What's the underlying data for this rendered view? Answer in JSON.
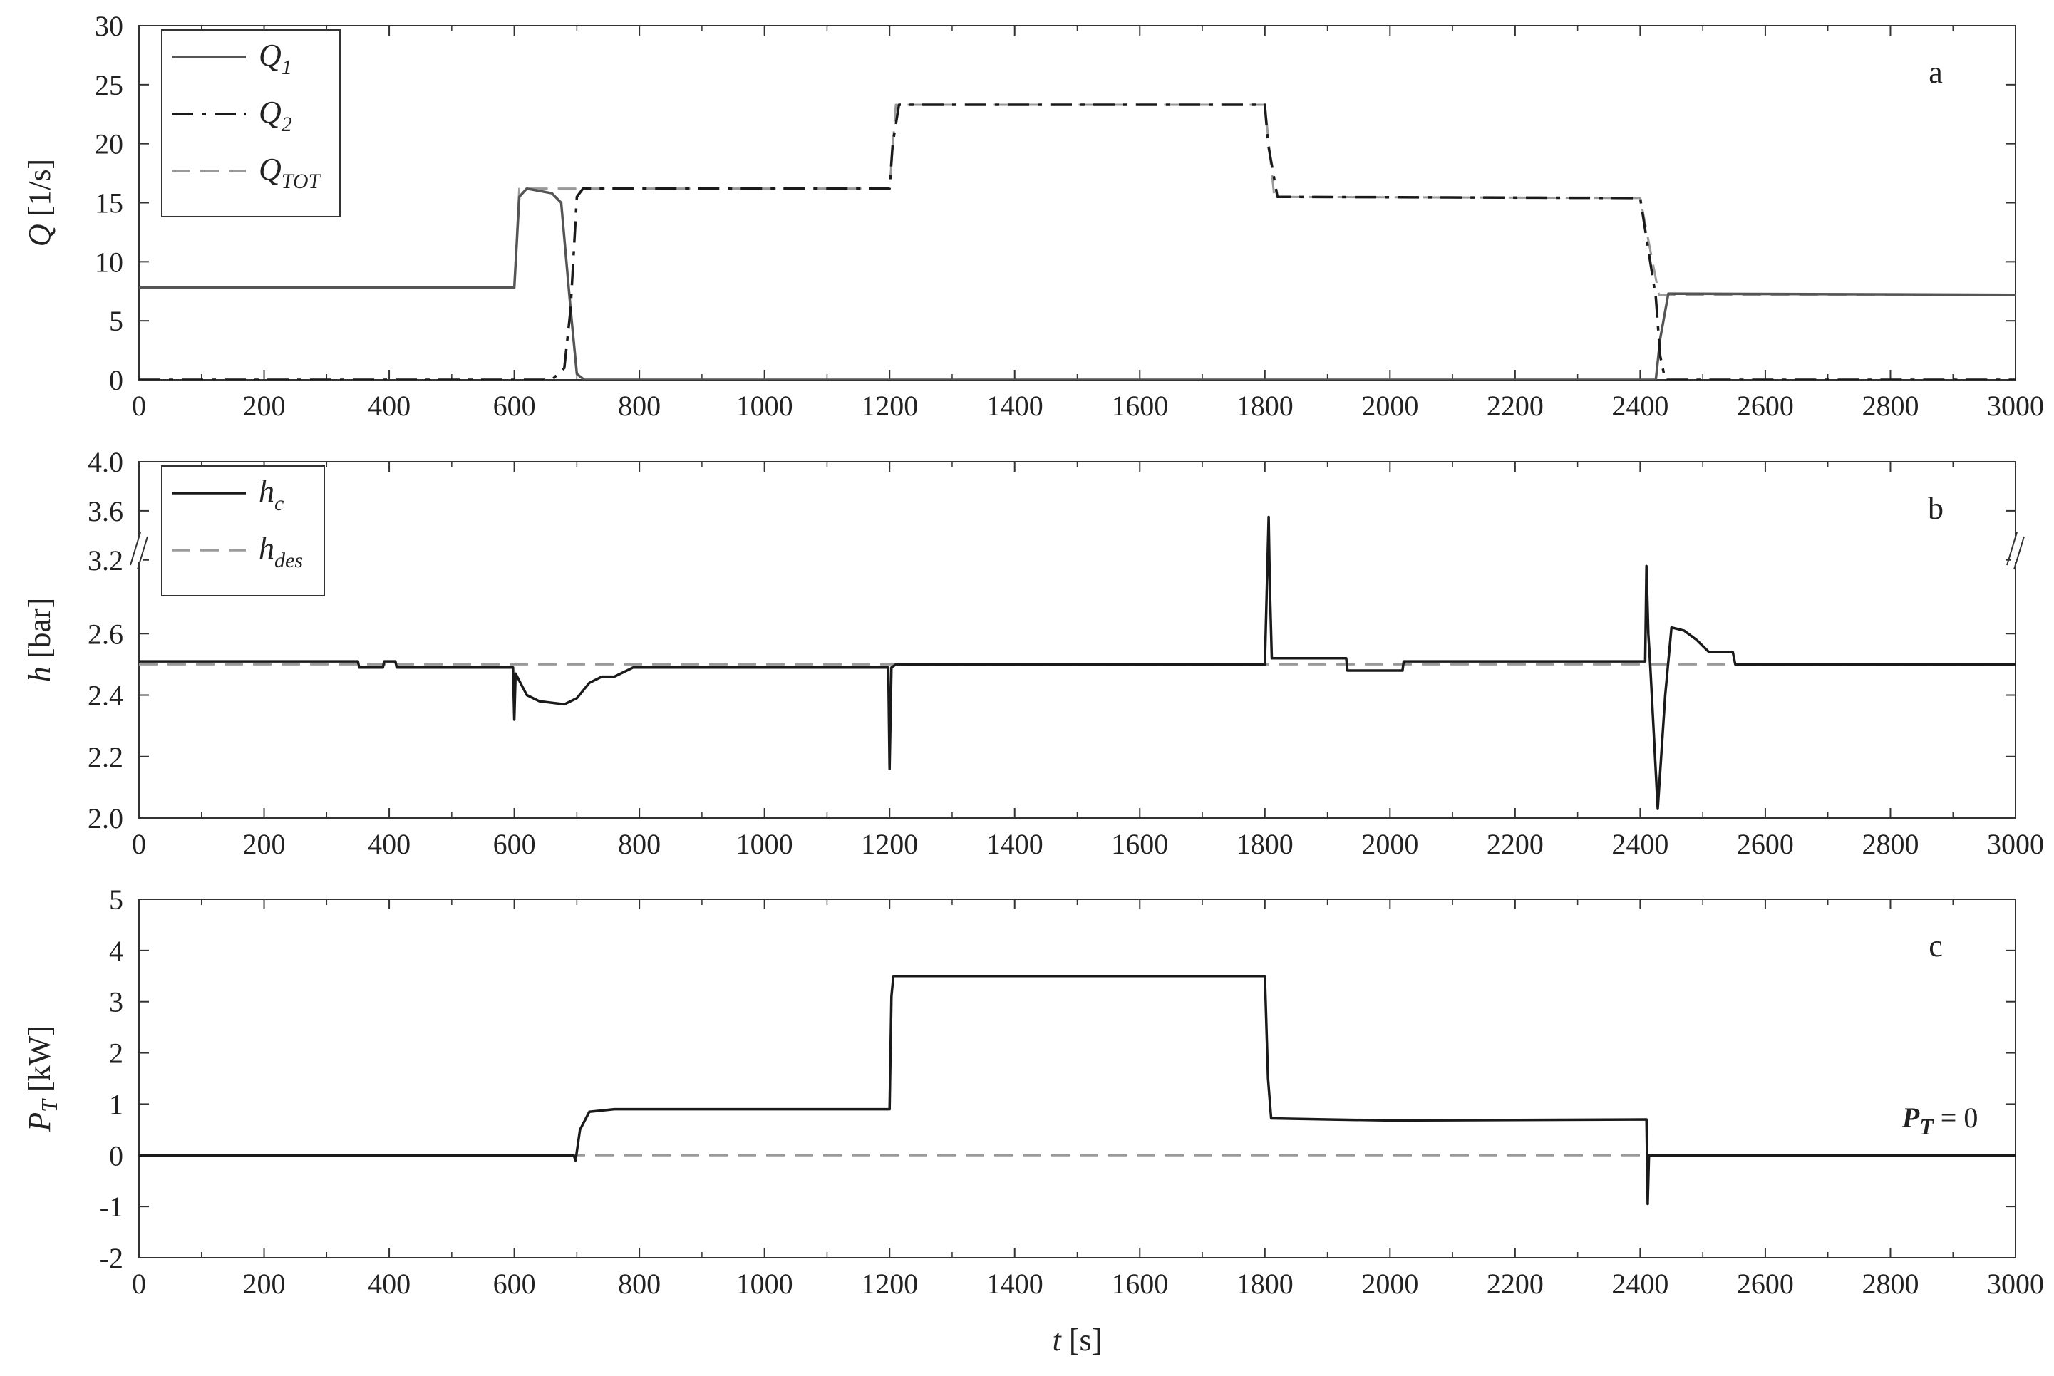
{
  "chart_data": [
    {
      "id": "a",
      "type": "line",
      "panel_label": "a",
      "ylabel": {
        "symbol": "Q",
        "unit": "[1/s]"
      },
      "xlim": [
        0,
        3000
      ],
      "ylim": [
        0,
        30
      ],
      "xticks": [
        0,
        200,
        400,
        600,
        800,
        1000,
        1200,
        1400,
        1600,
        1800,
        2000,
        2200,
        2400,
        2600,
        2800,
        3000
      ],
      "xtick_labels": [
        "0",
        "200",
        "400",
        "600",
        "800",
        "1000",
        "1200",
        "1400",
        "1600",
        "1800",
        "2000",
        "2200",
        "2400",
        "2600",
        "2800",
        "3000"
      ],
      "yticks": [
        0,
        5,
        10,
        15,
        20,
        25,
        30
      ],
      "ytick_labels": [
        "0",
        "5",
        "10",
        "15",
        "20",
        "25",
        "30"
      ],
      "legend_position": "top-left",
      "series": [
        {
          "name": "Q1",
          "legend_main": "Q",
          "legend_sub": "1",
          "style": "solid",
          "color": "#555555",
          "x": [
            0,
            600,
            608,
            620,
            660,
            675,
            690,
            700,
            712,
            2410,
            2425,
            2432,
            2445,
            3000
          ],
          "y": [
            7.8,
            7.8,
            15.5,
            16.2,
            15.8,
            15.0,
            6.0,
            0.5,
            0,
            0,
            0,
            3.5,
            7.3,
            7.2
          ]
        },
        {
          "name": "Q2",
          "legend_main": "Q",
          "legend_sub": "2",
          "style": "dashdot",
          "color": "#1a1a1a",
          "x": [
            0,
            660,
            680,
            690,
            700,
            710,
            1200,
            1205,
            1215,
            1800,
            1805,
            1820,
            2400,
            2410,
            2425,
            2432,
            2440,
            3000
          ],
          "y": [
            0,
            0,
            1.0,
            6.0,
            15.5,
            16.2,
            16.2,
            20.0,
            23.3,
            23.3,
            20.0,
            15.5,
            15.4,
            12.0,
            7.0,
            2.0,
            0,
            0
          ]
        },
        {
          "name": "QTOT",
          "legend_main": "Q",
          "legend_sub": "TOT",
          "style": "dashed",
          "color": "#9a9a9a",
          "x": [
            0,
            600,
            608,
            1200,
            1210,
            1800,
            1815,
            2400,
            2430,
            3000
          ],
          "y": [
            7.8,
            7.8,
            16.2,
            16.2,
            23.3,
            23.3,
            15.5,
            15.4,
            7.2,
            7.2
          ]
        }
      ]
    },
    {
      "id": "b",
      "type": "line",
      "panel_label": "b",
      "ylabel": {
        "symbol": "h",
        "unit": "[bar]"
      },
      "xlim": [
        0,
        3000
      ],
      "ylim": [
        2.0,
        4.0
      ],
      "axis_break": [
        2.8,
        3.1
      ],
      "xticks": [
        0,
        200,
        400,
        600,
        800,
        1000,
        1200,
        1400,
        1600,
        1800,
        2000,
        2200,
        2400,
        2600,
        2800,
        3000
      ],
      "xtick_labels": [
        "0",
        "200",
        "400",
        "600",
        "800",
        "1000",
        "1200",
        "1400",
        "1600",
        "1800",
        "2000",
        "2200",
        "2400",
        "2600",
        "2800",
        "3000"
      ],
      "yticks": [
        2.0,
        2.2,
        2.4,
        2.6,
        3.2,
        3.6,
        4.0
      ],
      "ytick_labels": [
        "2.0",
        "2.2",
        "2.4",
        "2.6",
        "3.2",
        "3.6",
        "4.0"
      ],
      "legend_position": "top-left",
      "series": [
        {
          "name": "hc",
          "legend_main": "h",
          "legend_sub": "c",
          "style": "solid",
          "color": "#1a1a1a",
          "x": [
            0,
            350,
            352,
            390,
            392,
            410,
            412,
            598,
            600,
            602,
            620,
            640,
            680,
            700,
            720,
            740,
            760,
            790,
            1198,
            1200,
            1203,
            1210,
            1800,
            1806,
            1808,
            1811,
            1815,
            1930,
            1932,
            2020,
            2022,
            2408,
            2410,
            2413,
            2416,
            2428,
            2440,
            2450,
            2470,
            2490,
            2510,
            2548,
            2552,
            3000
          ],
          "y": [
            2.51,
            2.51,
            2.49,
            2.49,
            2.51,
            2.51,
            2.49,
            2.49,
            2.32,
            2.47,
            2.4,
            2.38,
            2.37,
            2.39,
            2.44,
            2.46,
            2.46,
            2.49,
            2.49,
            2.16,
            2.49,
            2.5,
            2.5,
            3.55,
            2.75,
            2.52,
            2.52,
            2.52,
            2.48,
            2.48,
            2.51,
            2.51,
            3.15,
            2.6,
            2.5,
            2.03,
            2.4,
            2.62,
            2.61,
            2.58,
            2.54,
            2.54,
            2.5,
            2.5
          ]
        },
        {
          "name": "hdes",
          "legend_main": "h",
          "legend_sub": "des",
          "style": "dashed",
          "color": "#9a9a9a",
          "x": [
            0,
            3000
          ],
          "y": [
            2.5,
            2.5
          ]
        }
      ]
    },
    {
      "id": "c",
      "type": "line",
      "panel_label": "c",
      "ylabel": {
        "symbol": "P",
        "sub": "T",
        "unit": "[kW]"
      },
      "xlabel": {
        "symbol": "t",
        "unit": "[s]"
      },
      "xlim": [
        0,
        3000
      ],
      "ylim": [
        -2,
        5
      ],
      "xticks": [
        0,
        200,
        400,
        600,
        800,
        1000,
        1200,
        1400,
        1600,
        1800,
        2000,
        2200,
        2400,
        2600,
        2800,
        3000
      ],
      "xtick_labels": [
        "0",
        "200",
        "400",
        "600",
        "800",
        "1000",
        "1200",
        "1400",
        "1600",
        "1800",
        "2000",
        "2200",
        "2400",
        "2600",
        "2800",
        "3000"
      ],
      "yticks": [
        -2,
        -1,
        0,
        1,
        2,
        3,
        4,
        5
      ],
      "ytick_labels": [
        "-2",
        "-1",
        "0",
        "1",
        "2",
        "3",
        "4",
        "5"
      ],
      "annotation": {
        "main": "P",
        "sub": "T",
        "rest": " = 0",
        "x": 2940,
        "y": 0.55
      },
      "series": [
        {
          "name": "PT",
          "style": "solid",
          "color": "#1a1a1a",
          "x": [
            0,
            695,
            698,
            705,
            720,
            760,
            1200,
            1203,
            1206,
            1215,
            1800,
            1805,
            1810,
            1900,
            2000,
            2410,
            2412,
            2414,
            2418,
            3000
          ],
          "y": [
            0,
            0,
            -0.1,
            0.5,
            0.85,
            0.9,
            0.9,
            3.1,
            3.5,
            3.5,
            3.5,
            1.5,
            0.72,
            0.7,
            0.68,
            0.7,
            -0.95,
            0.0,
            0.0,
            0.0
          ]
        },
        {
          "name": "PT=0",
          "style": "dashed",
          "color": "#9a9a9a",
          "x": [
            0,
            3000
          ],
          "y": [
            0,
            0
          ]
        }
      ]
    }
  ]
}
